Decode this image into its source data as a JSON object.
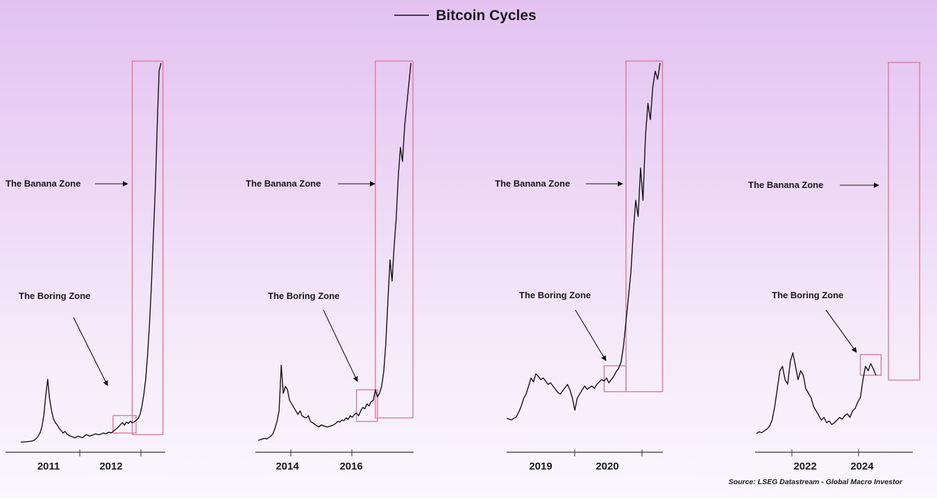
{
  "chart_data": {
    "type": "line",
    "title": "",
    "legend": {
      "entries": [
        "Bitcoin Cycles"
      ],
      "placement": "top-center"
    },
    "source": "Source: LSEG Datastream - Global Macro Investor",
    "colors": {
      "line": "#111111",
      "zone_box": "#e07a95",
      "arrow": "#111111"
    },
    "annotations": {
      "banana_zone": "The Banana Zone",
      "boring_zone": "The Boring Zone"
    },
    "panels": [
      {
        "name": "cycle-1",
        "tick_labels": [
          "2011",
          "2012"
        ],
        "series": [
          {
            "values": [
              0.5,
              0.6,
              0.8,
              1.0,
              1.2,
              1.5,
              2,
              3,
              5,
              8,
              12,
              20,
              35,
              60,
              80,
              55,
              40,
              30,
              25,
              22,
              18,
              15,
              12,
              14,
              11,
              9,
              8,
              7,
              6,
              7,
              8,
              7,
              6,
              8,
              10,
              9,
              8,
              9,
              10,
              11,
              10,
              10,
              11,
              12,
              11,
              12,
              13,
              12,
              14,
              16,
              18,
              20,
              23,
              25,
              22,
              26,
              24,
              27,
              25,
              26,
              28,
              30,
              35,
              45,
              60,
              80,
              110,
              150,
              200,
              260,
              320,
              400,
              470,
              480
            ]
          }
        ],
        "boxes": [
          {
            "zone": "boring",
            "start": 48,
            "end": 60,
            "low": 12,
            "high": 34
          },
          {
            "zone": "banana",
            "start": 58,
            "end": 74,
            "low": 10,
            "high": 480
          }
        ]
      },
      {
        "name": "cycle-2",
        "tick_labels": [
          "2014",
          "2016"
        ],
        "series": [
          {
            "values": [
              3,
              4,
              5,
              6,
              5,
              7,
              9,
              12,
              20,
              30,
              45,
              110,
              70,
              80,
              75,
              60,
              55,
              50,
              45,
              40,
              45,
              38,
              36,
              35,
              38,
              30,
              28,
              26,
              24,
              22,
              25,
              24,
              23,
              22,
              23,
              24,
              25,
              27,
              30,
              29,
              32,
              31,
              35,
              33,
              38,
              36,
              40,
              42,
              38,
              45,
              50,
              48,
              55,
              52,
              58,
              60,
              75,
              65,
              70,
              80,
              100,
              140,
              200,
              260,
              230,
              280,
              320,
              380,
              420,
              400,
              450,
              480,
              510,
              540
            ]
          }
        ],
        "boxes": [
          {
            "zone": "boring",
            "start": 47,
            "end": 57,
            "low": 30,
            "high": 75
          },
          {
            "zone": "banana",
            "start": 56,
            "end": 74,
            "low": 35,
            "high": 540
          }
        ]
      },
      {
        "name": "cycle-3",
        "tick_labels": [
          "2019",
          "2020"
        ],
        "series": [
          {
            "values": [
              30,
              29,
              28,
              30,
              32,
              38,
              45,
              55,
              60,
              70,
              80,
              75,
              85,
              82,
              78,
              80,
              76,
              72,
              74,
              70,
              66,
              62,
              60,
              64,
              68,
              72,
              65,
              55,
              40,
              55,
              60,
              65,
              70,
              66,
              68,
              70,
              67,
              72,
              75,
              78,
              76,
              80,
              74,
              78,
              82,
              88,
              92,
              100,
              120,
              150,
              180,
              210,
              260,
              300,
              280,
              340,
              300,
              380,
              420,
              400,
              440,
              460,
              450,
              470
            ]
          }
        ],
        "boxes": [
          {
            "zone": "boring",
            "start": 40,
            "end": 49,
            "low": 63,
            "high": 95
          },
          {
            "zone": "banana",
            "start": 49,
            "end": 64,
            "low": 63,
            "high": 470
          }
        ]
      },
      {
        "name": "cycle-4",
        "tick_labels": [
          "2022",
          "2024"
        ],
        "series": [
          {
            "values": [
              10,
              12,
              11,
              13,
              15,
              18,
              25,
              40,
              60,
              80,
              85,
              70,
              65,
              90,
              100,
              85,
              70,
              80,
              75,
              60,
              55,
              50,
              40,
              35,
              30,
              25,
              28,
              22,
              24,
              20,
              22,
              25,
              28,
              26,
              30,
              32,
              28,
              35,
              38,
              45,
              50,
              70,
              85,
              80,
              88,
              82,
              75
            ]
          }
        ],
        "boxes": [
          {
            "zone": "boring",
            "start": 40,
            "end": 48,
            "low": 75,
            "high": 98
          },
          {
            "zone": "banana",
            "start": 49,
            "end": 61,
            "low": 78,
            "high": 360
          }
        ]
      }
    ]
  }
}
